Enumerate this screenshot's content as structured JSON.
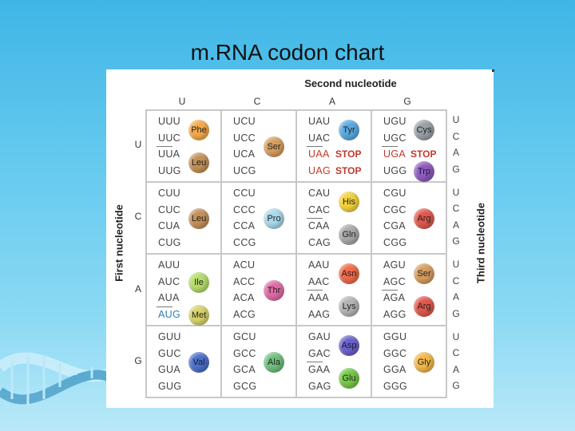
{
  "slide": {
    "title": "m.RNA codon chart"
  },
  "chart": {
    "second_title": "Second nucleotide",
    "first_title": "First nucleotide",
    "third_title": "Third nucleotide",
    "bases": [
      "U",
      "C",
      "A",
      "G"
    ],
    "blocks": [
      [
        {
          "codons": [
            "UUU",
            "UUC",
            "UUA",
            "UUG"
          ],
          "aa": [
            {
              "name": "Phe",
              "rows": [
                0,
                1
              ],
              "color": "#f5a94a"
            },
            {
              "name": "Leu",
              "rows": [
                2,
                3
              ],
              "color": "#c49058"
            }
          ],
          "dividers": [
            2
          ]
        },
        {
          "codons": [
            "UCU",
            "UCC",
            "UCA",
            "UCG"
          ],
          "aa": [
            {
              "name": "Ser",
              "rows": [
                0,
                3
              ],
              "color": "#d69d5f"
            }
          ],
          "dividers": []
        },
        {
          "codons": [
            "UAU",
            "UAC",
            "UAA",
            "UAG"
          ],
          "aa": [
            {
              "name": "Tyr",
              "rows": [
                0,
                1
              ],
              "color": "#5aa9e0"
            }
          ],
          "stops": [
            {
              "label": "STOP",
              "row": 2
            },
            {
              "label": "STOP",
              "row": 3
            }
          ],
          "dividers": [
            2
          ]
        },
        {
          "codons": [
            "UGU",
            "UGC",
            "UGA",
            "UGG"
          ],
          "aa": [
            {
              "name": "Cys",
              "rows": [
                0,
                1
              ],
              "color": "#9aa0a6"
            },
            {
              "name": "Trp",
              "rows": [
                3,
                3
              ],
              "color": "#8e5bbf"
            }
          ],
          "stops": [
            {
              "label": "STOP",
              "row": 2
            }
          ],
          "dividers": [
            2
          ]
        }
      ],
      [
        {
          "codons": [
            "CUU",
            "CUC",
            "CUA",
            "CUG"
          ],
          "aa": [
            {
              "name": "Leu",
              "rows": [
                0,
                3
              ],
              "color": "#c49058"
            }
          ],
          "dividers": []
        },
        {
          "codons": [
            "CCU",
            "CCC",
            "CCA",
            "CCG"
          ],
          "aa": [
            {
              "name": "Pro",
              "rows": [
                0,
                3
              ],
              "color": "#a9d8ec"
            }
          ],
          "dividers": []
        },
        {
          "codons": [
            "CAU",
            "CAC",
            "CAA",
            "CAG"
          ],
          "aa": [
            {
              "name": "His",
              "rows": [
                0,
                1
              ],
              "color": "#f3d23a"
            },
            {
              "name": "Gln",
              "rows": [
                2,
                3
              ],
              "color": "#a9a9a9"
            }
          ],
          "dividers": [
            2
          ]
        },
        {
          "codons": [
            "CGU",
            "CGC",
            "CGA",
            "CGG"
          ],
          "aa": [
            {
              "name": "Arg",
              "rows": [
                0,
                3
              ],
              "color": "#e2574c"
            }
          ],
          "dividers": []
        }
      ],
      [
        {
          "codons": [
            "AUU",
            "AUC",
            "AUA",
            "AUG"
          ],
          "aa": [
            {
              "name": "Ile",
              "rows": [
                0,
                2
              ],
              "color": "#b5dc6a"
            },
            {
              "name": "Met",
              "rows": [
                3,
                3
              ],
              "color": "#d7d36a"
            }
          ],
          "start": [
            3
          ],
          "dividers": [
            3
          ]
        },
        {
          "codons": [
            "ACU",
            "ACC",
            "ACA",
            "ACG"
          ],
          "aa": [
            {
              "name": "Thr",
              "rows": [
                0,
                3
              ],
              "color": "#e06aa6"
            }
          ],
          "dividers": []
        },
        {
          "codons": [
            "AAU",
            "AAC",
            "AAA",
            "AAG"
          ],
          "aa": [
            {
              "name": "Asn",
              "rows": [
                0,
                1
              ],
              "color": "#f06a4a"
            },
            {
              "name": "Lys",
              "rows": [
                2,
                3
              ],
              "color": "#b4b4b4"
            }
          ],
          "dividers": [
            2
          ]
        },
        {
          "codons": [
            "AGU",
            "AGC",
            "AGA",
            "AGG"
          ],
          "aa": [
            {
              "name": "Ser",
              "rows": [
                0,
                1
              ],
              "color": "#d69d5f"
            },
            {
              "name": "Arg",
              "rows": [
                2,
                3
              ],
              "color": "#e2574c"
            }
          ],
          "dividers": [
            2
          ]
        }
      ],
      [
        {
          "codons": [
            "GUU",
            "GUC",
            "GUA",
            "GUG"
          ],
          "aa": [
            {
              "name": "Val",
              "rows": [
                0,
                3
              ],
              "color": "#4d6fc9"
            }
          ],
          "dividers": []
        },
        {
          "codons": [
            "GCU",
            "GCC",
            "GCA",
            "GCG"
          ],
          "aa": [
            {
              "name": "Ala",
              "rows": [
                0,
                3
              ],
              "color": "#6fbf7e"
            }
          ],
          "dividers": []
        },
        {
          "codons": [
            "GAU",
            "GAC",
            "GAA",
            "GAG"
          ],
          "aa": [
            {
              "name": "Asp",
              "rows": [
                0,
                1
              ],
              "color": "#6a60c9"
            },
            {
              "name": "Glu",
              "rows": [
                2,
                3
              ],
              "color": "#74c948"
            }
          ],
          "dividers": [
            2
          ]
        },
        {
          "codons": [
            "GGU",
            "GGC",
            "GGA",
            "GGG"
          ],
          "aa": [
            {
              "name": "Gly",
              "rows": [
                0,
                3
              ],
              "color": "#f2b84a"
            }
          ],
          "dividers": []
        }
      ]
    ]
  }
}
